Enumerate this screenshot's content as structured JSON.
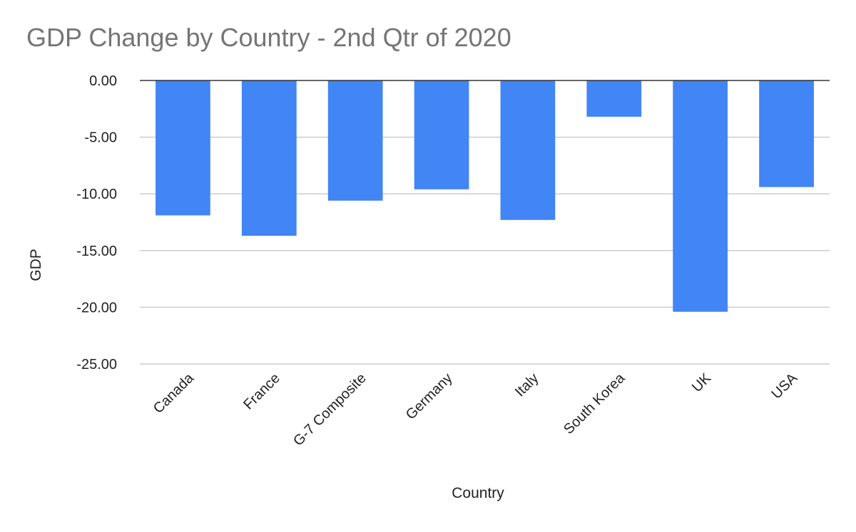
{
  "chart_data": {
    "type": "bar",
    "title": "GDP Change by Country - 2nd Qtr of 2020",
    "xlabel": "Country",
    "ylabel": "GDP",
    "categories": [
      "Canada",
      "France",
      "G-7 Composite",
      "Germany",
      "Italy",
      "South Korea",
      "UK",
      "USA"
    ],
    "values": [
      -11.9,
      -13.7,
      -10.6,
      -9.6,
      -12.3,
      -3.2,
      -20.4,
      -9.4
    ],
    "ylim": [
      -25,
      0
    ],
    "yticks": [
      0,
      -5,
      -10,
      -15,
      -20,
      -25
    ],
    "ytick_labels": [
      "0.00",
      "-5.00",
      "-10.00",
      "-15.00",
      "-20.00",
      "-25.00"
    ],
    "grid": true,
    "legend": "none",
    "bar_color": "#4285f4"
  }
}
